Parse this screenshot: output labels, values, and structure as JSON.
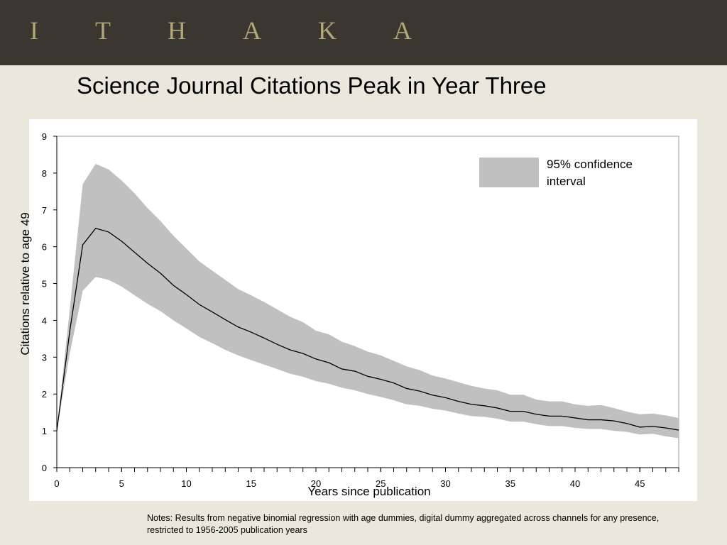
{
  "header": {
    "logo": "ITHAKA"
  },
  "chart_data": {
    "type": "line",
    "title": "Science Journal Citations Peak in Year Three",
    "x_label": "Years since publication",
    "y_label": "Citations relative to age 49",
    "note": "Notes: Results from negative binomial regression with age dummies, digital dummy aggregated across channels for any presence, restricted to 1956-2005 publication years",
    "x": [
      0,
      1,
      2,
      3,
      4,
      5,
      6,
      7,
      8,
      9,
      10,
      11,
      12,
      13,
      14,
      15,
      16,
      17,
      18,
      19,
      20,
      21,
      22,
      23,
      24,
      25,
      26,
      27,
      28,
      29,
      30,
      31,
      32,
      33,
      34,
      35,
      36,
      37,
      38,
      39,
      40,
      41,
      42,
      43,
      44,
      45,
      46,
      47,
      48
    ],
    "xlim": [
      0,
      48
    ],
    "xticks": [
      0,
      5,
      10,
      15,
      20,
      25,
      30,
      35,
      40,
      45
    ],
    "ylim": [
      0,
      9
    ],
    "yticks": [
      0,
      1,
      2,
      3,
      4,
      5,
      6,
      7,
      8,
      9
    ],
    "series": [
      {
        "name": "95% confidence interval",
        "color": "#c0c0c0",
        "upper": [
          1,
          4.3,
          7.7,
          8.25,
          8.1,
          7.8,
          7.45,
          7.05,
          6.7,
          6.3,
          5.95,
          5.6,
          5.35,
          5.1,
          4.85,
          4.68,
          4.5,
          4.3,
          4.1,
          3.95,
          3.72,
          3.62,
          3.42,
          3.3,
          3.15,
          3.05,
          2.9,
          2.75,
          2.65,
          2.5,
          2.42,
          2.32,
          2.22,
          2.15,
          2.1,
          1.98,
          1.98,
          1.85,
          1.8,
          1.8,
          1.72,
          1.68,
          1.7,
          1.62,
          1.52,
          1.45,
          1.47,
          1.42,
          1.35
        ],
        "lower": [
          1,
          3.1,
          4.8,
          5.18,
          5.1,
          4.92,
          4.68,
          4.45,
          4.25,
          4.0,
          3.78,
          3.55,
          3.38,
          3.2,
          3.05,
          2.92,
          2.8,
          2.68,
          2.55,
          2.47,
          2.35,
          2.28,
          2.17,
          2.1,
          2.0,
          1.92,
          1.83,
          1.72,
          1.68,
          1.6,
          1.55,
          1.47,
          1.4,
          1.38,
          1.33,
          1.25,
          1.25,
          1.18,
          1.13,
          1.13,
          1.08,
          1.05,
          1.05,
          1.0,
          0.97,
          0.9,
          0.92,
          0.85,
          0.8
        ]
      },
      {
        "color": "#000000",
        "values": [
          1,
          3.7,
          6.05,
          6.5,
          6.4,
          6.15,
          5.85,
          5.55,
          5.28,
          4.95,
          4.7,
          4.43,
          4.23,
          4.02,
          3.82,
          3.68,
          3.52,
          3.35,
          3.2,
          3.1,
          2.95,
          2.85,
          2.68,
          2.62,
          2.48,
          2.4,
          2.3,
          2.15,
          2.08,
          1.97,
          1.9,
          1.8,
          1.72,
          1.68,
          1.62,
          1.53,
          1.53,
          1.45,
          1.4,
          1.4,
          1.35,
          1.3,
          1.3,
          1.27,
          1.2,
          1.1,
          1.12,
          1.08,
          1.02
        ]
      }
    ]
  }
}
